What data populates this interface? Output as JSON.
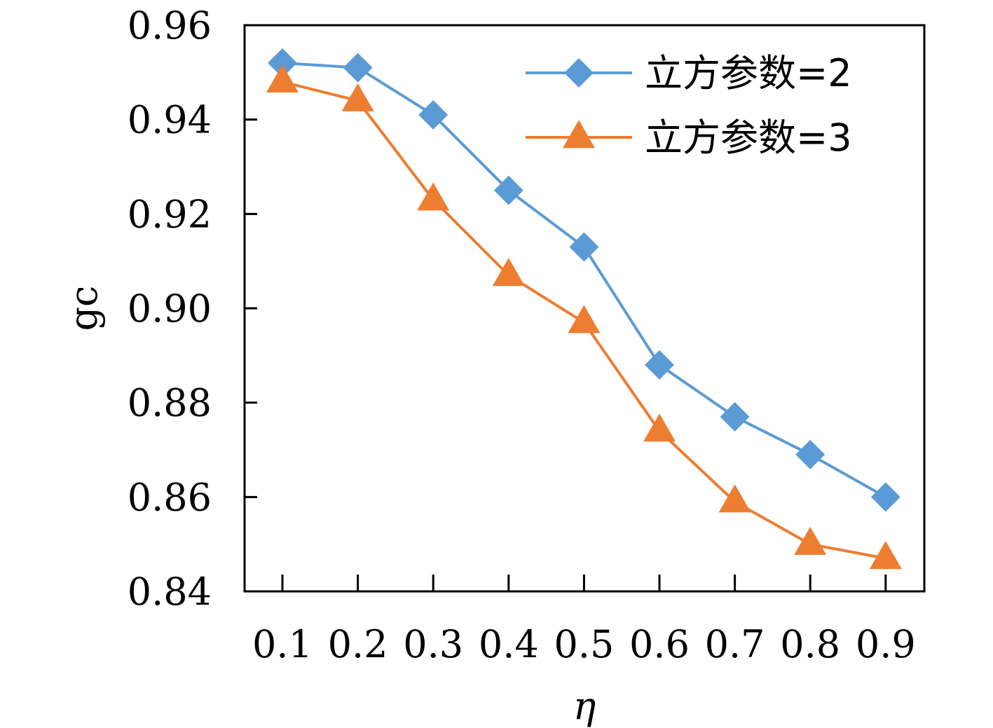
{
  "chart_data": {
    "type": "line",
    "title": "",
    "xlabel": "η",
    "ylabel": "gc",
    "categories": [
      "0.1",
      "0.2",
      "0.3",
      "0.4",
      "0.5",
      "0.6",
      "0.7",
      "0.8",
      "0.9"
    ],
    "x": [
      0.1,
      0.2,
      0.3,
      0.4,
      0.5,
      0.6,
      0.7,
      0.8,
      0.9
    ],
    "ylim": [
      0.84,
      0.96
    ],
    "yticks": [
      0.84,
      0.86,
      0.88,
      0.9,
      0.92,
      0.94,
      0.96
    ],
    "ytick_labels": [
      "0.84",
      "0.86",
      "0.88",
      "0.90",
      "0.92",
      "0.94",
      "0.96"
    ],
    "grid": false,
    "legend_position": "top-right",
    "series": [
      {
        "name": "立方参数=2",
        "color": "#5B9BD5",
        "marker": "diamond",
        "values": [
          0.952,
          0.951,
          0.941,
          0.925,
          0.913,
          0.888,
          0.877,
          0.869,
          0.86
        ]
      },
      {
        "name": "立方参数=3",
        "color": "#ED7D31",
        "marker": "triangle",
        "values": [
          0.948,
          0.944,
          0.923,
          0.907,
          0.897,
          0.874,
          0.859,
          0.85,
          0.847
        ]
      }
    ]
  }
}
